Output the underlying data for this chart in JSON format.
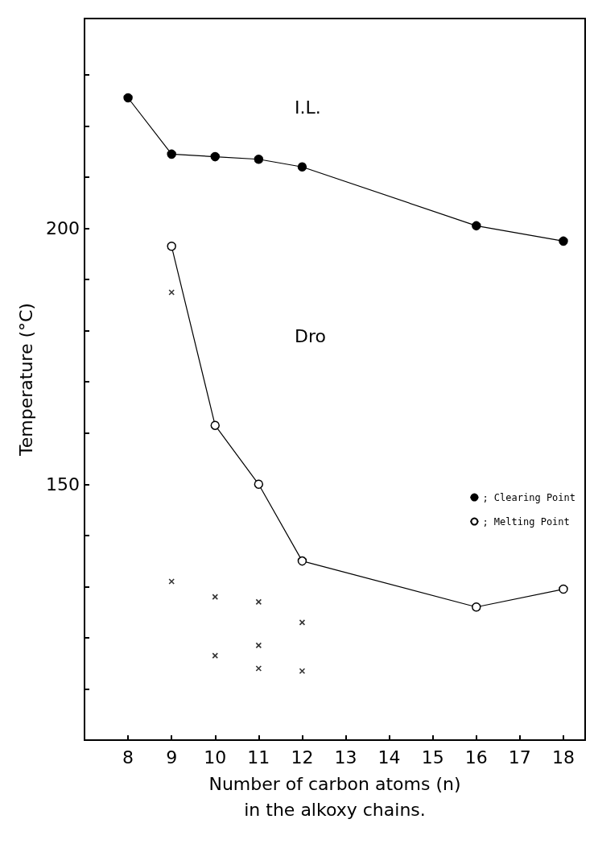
{
  "chart_data": {
    "type": "line",
    "xlabel": "Number of carbon atoms (n)\nin the alkoxy chains.",
    "ylabel": "Temperature (°C)",
    "xlim": [
      7,
      18.5
    ],
    "xticks": [
      8,
      9,
      10,
      11,
      12,
      13,
      14,
      15,
      16,
      17,
      18
    ],
    "ylim": [
      100,
      241
    ],
    "yticks": [
      {
        "value": 110,
        "label": null
      },
      {
        "value": 120,
        "label": null
      },
      {
        "value": 130,
        "label": null
      },
      {
        "value": 140,
        "label": null
      },
      150,
      {
        "value": 160,
        "label": null
      },
      {
        "value": 170,
        "label": null
      },
      {
        "value": 180,
        "label": null
      },
      {
        "value": 190,
        "label": null
      },
      200,
      {
        "value": 210,
        "label": null
      },
      {
        "value": 220,
        "label": null
      },
      {
        "value": 230,
        "label": null
      }
    ],
    "grid": false,
    "legend": "right",
    "annotations": [
      "I.L.",
      "Dro"
    ],
    "series": [
      {
        "name": "; Clearing Point",
        "color": "#000000",
        "marker": "circle",
        "x": [
          8,
          9,
          10,
          11,
          12,
          16,
          18
        ],
        "values": [
          225.5,
          214.5,
          214,
          213.5,
          212,
          200.5,
          197.5
        ]
      },
      {
        "name": "; Melting Point",
        "color": "#000000",
        "marker": "circle",
        "x": [
          9,
          10,
          11,
          12,
          16,
          18
        ],
        "values": [
          196.5,
          161.5,
          150,
          135,
          126,
          129.5
        ]
      },
      {
        "type": "scatter",
        "color": "#000000",
        "marker": "cross",
        "x": [
          9,
          9,
          10,
          10,
          11,
          11,
          11,
          12,
          12
        ],
        "values": [
          187.5,
          131,
          128,
          116.5,
          127,
          118.5,
          114,
          123,
          113.5
        ]
      }
    ]
  }
}
